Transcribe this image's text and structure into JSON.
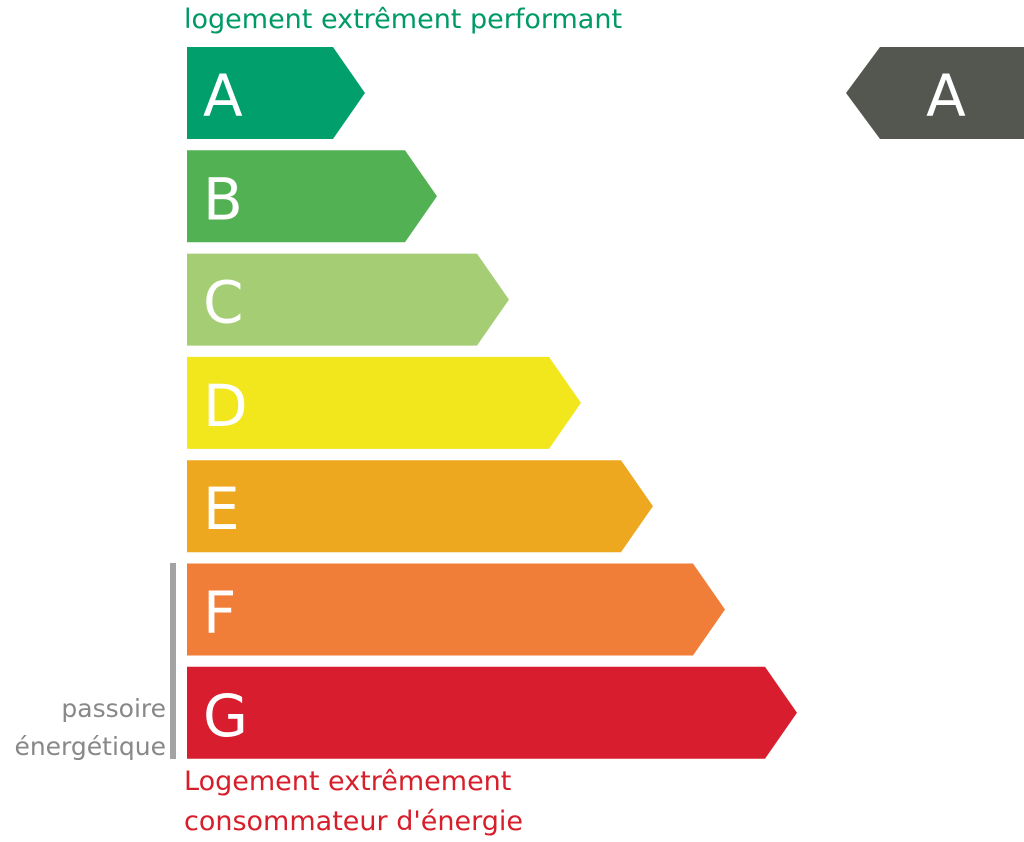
{
  "chart_data": {
    "type": "bar",
    "categories": [
      "A",
      "B",
      "C",
      "D",
      "E",
      "F",
      "G"
    ],
    "colors": [
      "#009f6b",
      "#52b153",
      "#a5cd74",
      "#f2e61c",
      "#eea820",
      "#f07e38",
      "#d81e2e"
    ],
    "top_label": "logement extrêment performant",
    "bottom_label": [
      "Logement extrêmement",
      "consommateur d'énergie"
    ],
    "passoire_label": [
      "passoire",
      "énergétique"
    ],
    "passoire_classes": [
      "F",
      "G"
    ],
    "current_rating": "A",
    "indicator_color": "#53574f"
  }
}
